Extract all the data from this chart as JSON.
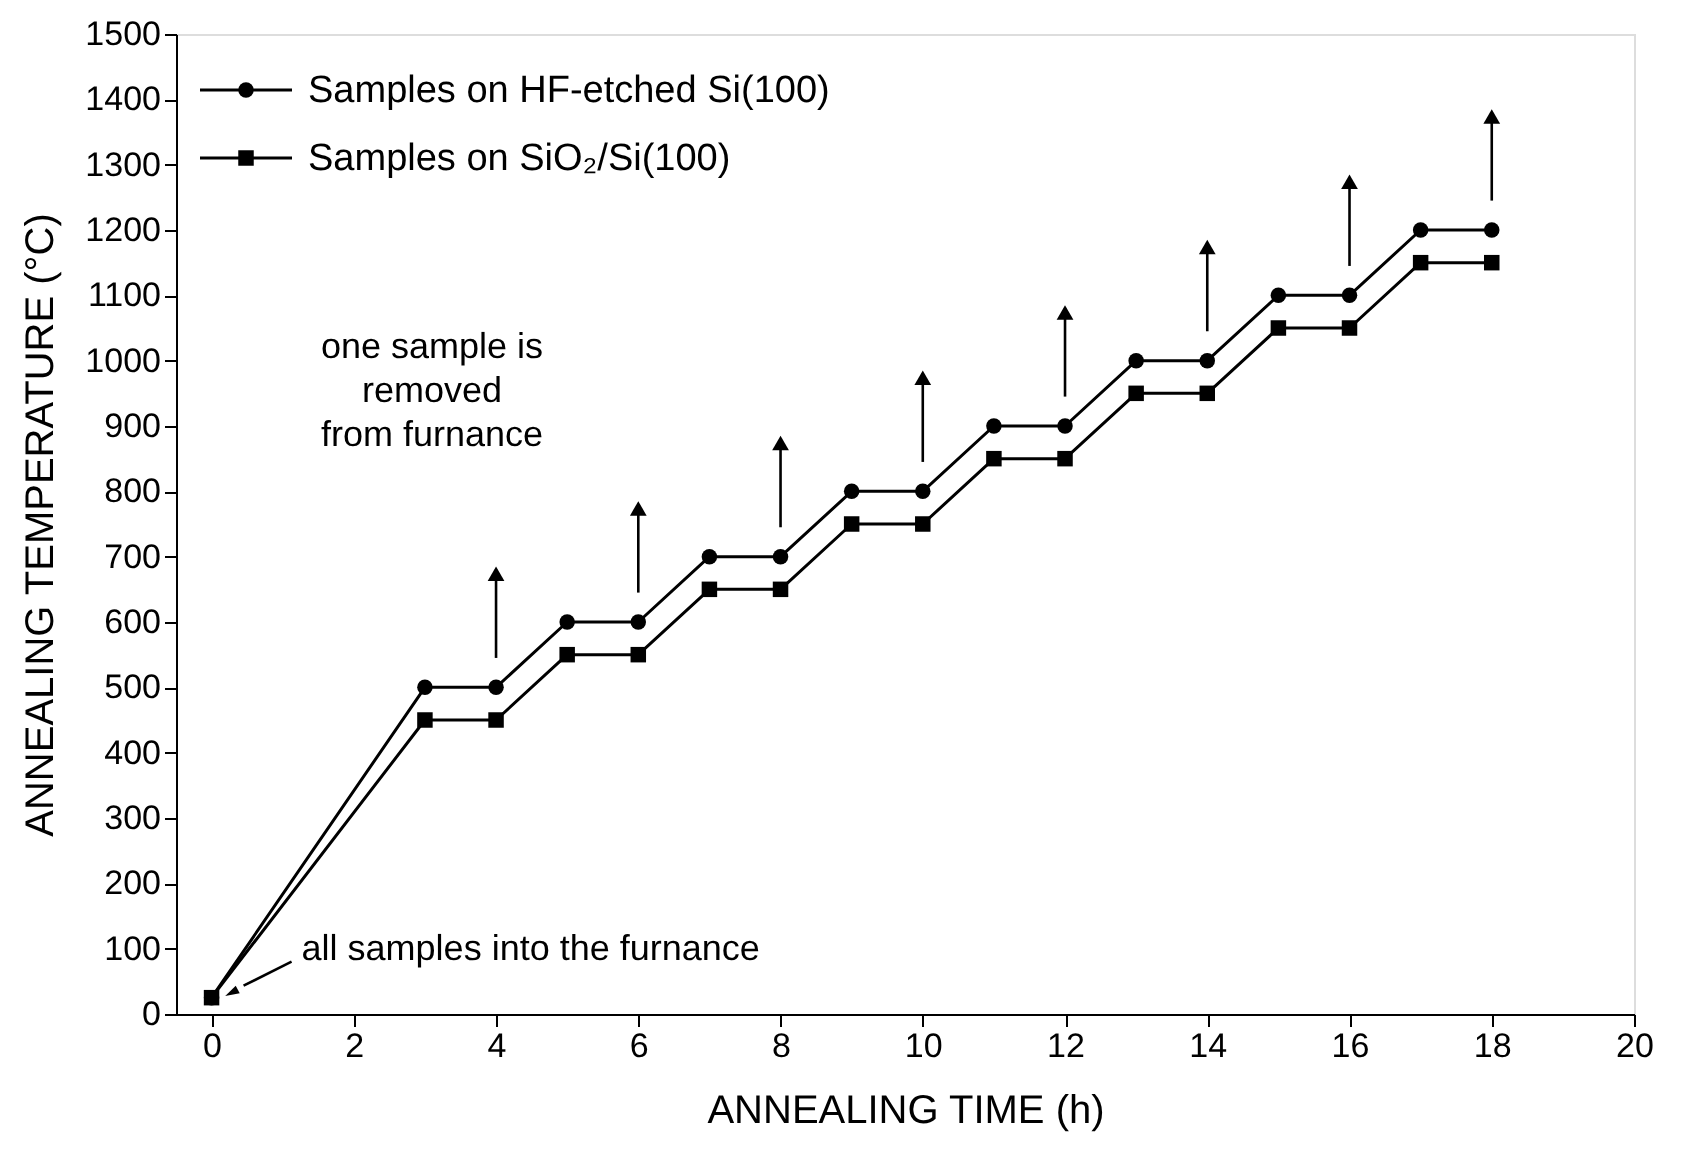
{
  "chart_data": {
    "type": "line",
    "xlabel": "ANNEALING TIME (h)",
    "ylabel": "ANNEALING TEMPERATURE (°C)",
    "x": [
      0,
      3,
      4,
      5,
      6,
      7,
      8,
      9,
      10,
      11,
      12,
      13,
      14,
      15,
      16,
      17,
      18
    ],
    "series": [
      {
        "name": "Samples on HF-etched Si(100)",
        "color": "#000000",
        "marker": "circle",
        "values": [
          25,
          500,
          500,
          600,
          600,
          700,
          700,
          800,
          800,
          900,
          900,
          1000,
          1000,
          1100,
          1100,
          1200,
          1200
        ]
      },
      {
        "name": "Samples on SiO₂/Si(100)",
        "color": "#000000",
        "marker": "square",
        "values": [
          25,
          450,
          450,
          550,
          550,
          650,
          650,
          750,
          750,
          850,
          850,
          950,
          950,
          1050,
          1050,
          1150,
          1150
        ]
      }
    ],
    "xlim": [
      -0.5,
      20
    ],
    "xticks": [
      0,
      2,
      4,
      6,
      8,
      10,
      12,
      14,
      16,
      18,
      20
    ],
    "ylim": [
      0,
      1500
    ],
    "yticks": [
      0,
      100,
      200,
      300,
      400,
      500,
      600,
      700,
      800,
      900,
      1000,
      1100,
      1200,
      1300,
      1400,
      1500
    ],
    "grid": false,
    "legend": "top left",
    "line_style": "solid",
    "annotations": [
      "one sample is\nremoved\nfrom furnance",
      {
        "text": "all samples into the furnance",
        "x": 0,
        "y": 25
      }
    ]
  }
}
